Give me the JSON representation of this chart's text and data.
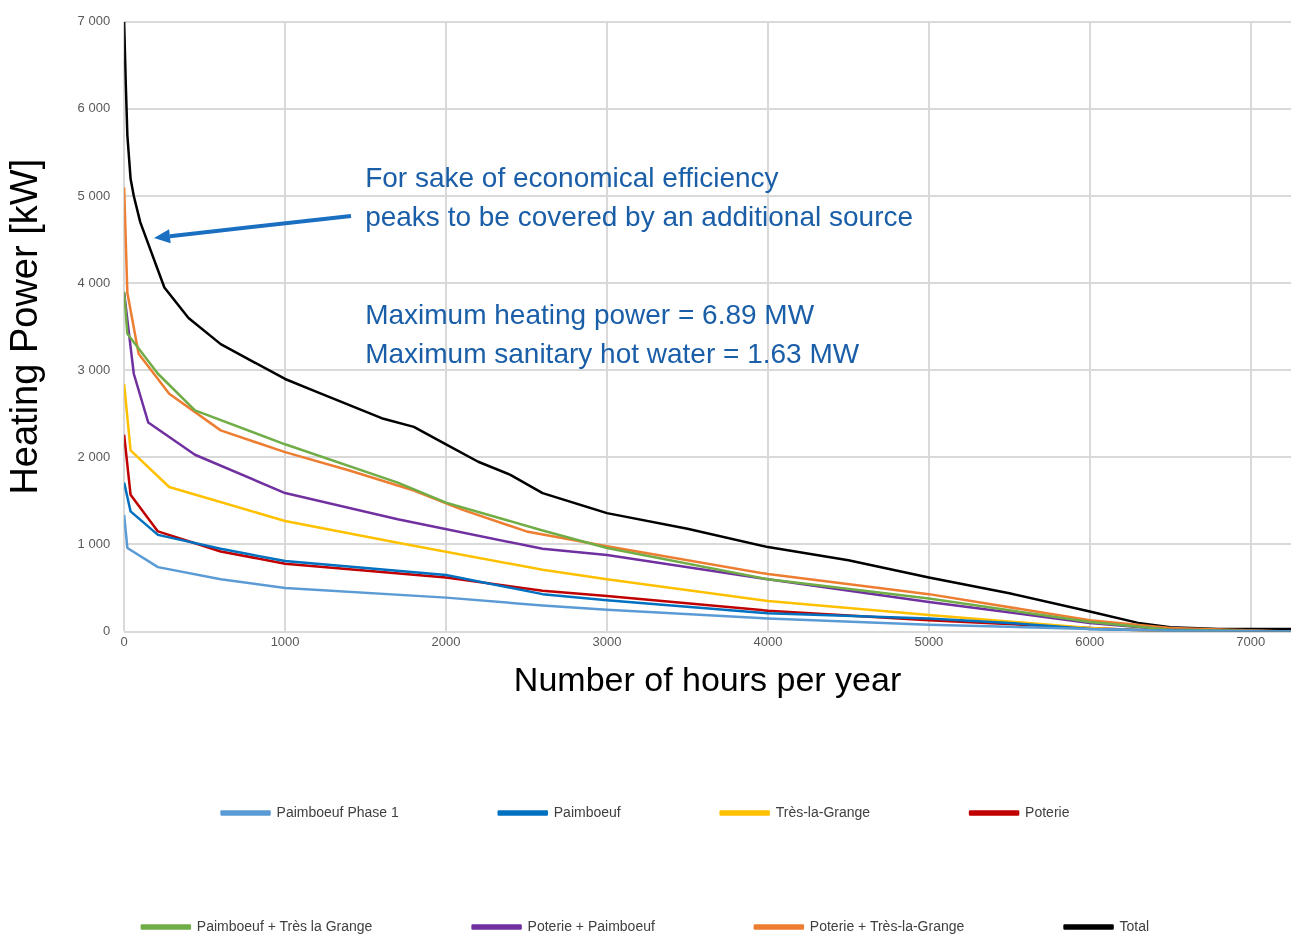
{
  "chart_data": {
    "type": "line",
    "xlabel": "Number of hours per year",
    "ylabel": "Heating Power [kW]",
    "xlim": [
      0,
      7250
    ],
    "xticks": [
      0,
      1000,
      2000,
      3000,
      4000,
      5000,
      6000,
      7000
    ],
    "ylim": [
      0,
      7000
    ],
    "yticks": [
      0,
      {
        "value": 1000,
        "label": "1 000"
      },
      {
        "value": 2000,
        "label": "2 000"
      },
      {
        "value": 3000,
        "label": "3 000"
      },
      {
        "value": 4000,
        "label": "4 000"
      },
      {
        "value": 5000,
        "label": "5 000"
      },
      {
        "value": 6000,
        "label": "6 000"
      },
      {
        "value": 7000,
        "label": "7 000"
      }
    ],
    "grid": true,
    "legend": "bottom",
    "marker": "none",
    "line_style": "solid",
    "annotations": [
      "For sake of economical efficiency",
      "peaks to be covered by an additional source",
      "Maximum heating power = 6.89 MW",
      "Maximum sanitary hot water = 1.63 MW"
    ],
    "series": [
      {
        "name": "Paimboeuf Phase 1",
        "color": "#5b9bd5",
        "x": [
          0,
          20,
          210,
          600,
          1000,
          2000,
          2600,
          3000,
          4000,
          5000,
          6000,
          6500,
          7250
        ],
        "values": [
          1340,
          960,
          740,
          600,
          500,
          390,
          300,
          250,
          150,
          80,
          30,
          10,
          0
        ]
      },
      {
        "name": "Paimboeuf",
        "color": "#0070c0",
        "x": [
          0,
          40,
          210,
          600,
          1000,
          2000,
          2600,
          3000,
          4000,
          5000,
          5500,
          6000,
          6500,
          7250
        ],
        "values": [
          1710,
          1380,
          1110,
          950,
          810,
          650,
          430,
          360,
          210,
          150,
          100,
          30,
          10,
          0
        ]
      },
      {
        "name": "Très-la-Grange",
        "color": "#ffc000",
        "x": [
          0,
          40,
          280,
          1000,
          1700,
          2600,
          3000,
          4000,
          5000,
          6000,
          6500,
          7250
        ],
        "values": [
          2840,
          2080,
          1660,
          1270,
          1020,
          710,
          600,
          350,
          190,
          40,
          0,
          0
        ]
      },
      {
        "name": "Poterie",
        "color": "#c00000",
        "x": [
          0,
          40,
          210,
          600,
          1000,
          2000,
          2600,
          3000,
          4000,
          5000,
          6000,
          6500,
          7250
        ],
        "values": [
          2260,
          1570,
          1150,
          920,
          780,
          620,
          470,
          410,
          240,
          130,
          40,
          0,
          0
        ]
      },
      {
        "name": "Paimboeuf + Très la Grange",
        "color": "#70ad47",
        "x": [
          0,
          20,
          210,
          440,
          1000,
          1700,
          2000,
          2600,
          3000,
          4000,
          5000,
          6000,
          6500,
          7250
        ],
        "values": [
          3900,
          3420,
          2960,
          2540,
          2150,
          1710,
          1480,
          1160,
          960,
          600,
          380,
          110,
          20,
          0
        ]
      },
      {
        "name": "Poterie + Paimboeuf",
        "color": "#7030a0",
        "x": [
          0,
          60,
          150,
          440,
          1000,
          1700,
          2600,
          3000,
          4000,
          5000,
          6000,
          6500,
          7250
        ],
        "values": [
          3890,
          2960,
          2400,
          2030,
          1590,
          1290,
          950,
          880,
          600,
          340,
          100,
          20,
          0
        ]
      },
      {
        "name": "Poterie + Très-la-Grange",
        "color": "#ed7d31",
        "x": [
          0,
          20,
          90,
          280,
          600,
          1000,
          1400,
          1800,
          2100,
          2500,
          3000,
          4000,
          5000,
          6000,
          6500,
          7250
        ],
        "values": [
          5100,
          3890,
          3190,
          2730,
          2310,
          2060,
          1850,
          1620,
          1400,
          1150,
          980,
          660,
          430,
          130,
          40,
          0
        ]
      },
      {
        "name": "Total",
        "color": "#000000",
        "x": [
          0,
          10,
          20,
          40,
          60,
          100,
          200,
          250,
          400,
          600,
          800,
          1000,
          1200,
          1400,
          1600,
          1800,
          1900,
          2000,
          2200,
          2400,
          2600,
          3000,
          3500,
          4000,
          4500,
          5000,
          5500,
          6000,
          6300,
          6500,
          6800,
          7250
        ],
        "values": [
          7000,
          6300,
          5700,
          5200,
          5000,
          4700,
          4200,
          3950,
          3600,
          3300,
          3100,
          2900,
          2750,
          2600,
          2450,
          2350,
          2250,
          2150,
          1950,
          1800,
          1590,
          1360,
          1180,
          970,
          820,
          620,
          440,
          230,
          100,
          50,
          30,
          30
        ]
      }
    ]
  }
}
